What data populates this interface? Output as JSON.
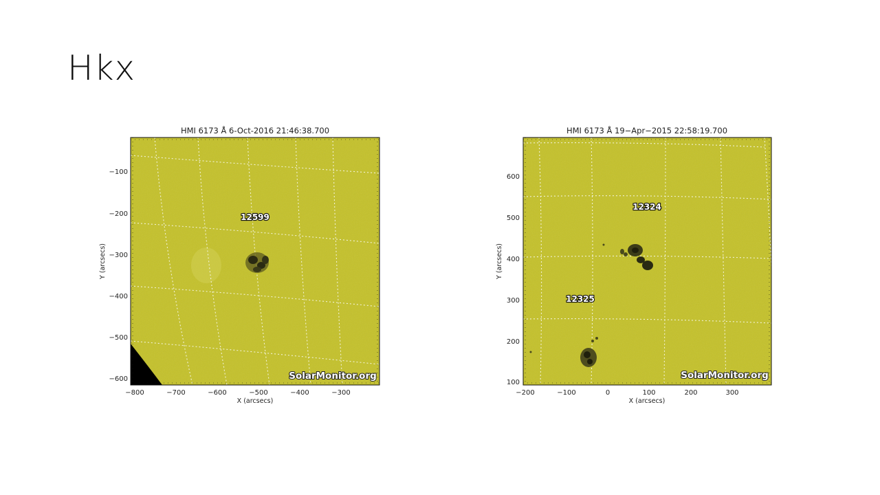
{
  "slide": {
    "title": "Hkx"
  },
  "figures": [
    {
      "id": "left",
      "title": "HMI 6173 Å  6-Oct-2016 21:46:38.700",
      "xlabel": "X (arcsecs)",
      "ylabel": "Y (arcsecs)",
      "x_ticks": [
        "−800",
        "−700",
        "−600",
        "−500",
        "−400",
        "−300"
      ],
      "y_ticks": [
        "−100",
        "−200",
        "−300",
        "−400",
        "−500",
        "−600"
      ],
      "regions": [
        {
          "label": "12599"
        }
      ],
      "watermark": "SolarMonitor.org",
      "colors": {
        "disk": "#c4c12a",
        "limb": "#000000"
      }
    },
    {
      "id": "right",
      "title": "HMI 6173 Å 19−Apr−2015 22:58:19.700",
      "xlabel": "X (arcsecs)",
      "ylabel": "Y (arcsecs)",
      "x_ticks": [
        "−200",
        "−100",
        "0",
        "100",
        "200",
        "300"
      ],
      "y_ticks": [
        "600",
        "500",
        "400",
        "300",
        "200",
        "100"
      ],
      "regions": [
        {
          "label": "12324"
        },
        {
          "label": "12325"
        }
      ],
      "watermark": "SolarMonitor.org",
      "colors": {
        "disk": "#c4c12a"
      }
    }
  ]
}
